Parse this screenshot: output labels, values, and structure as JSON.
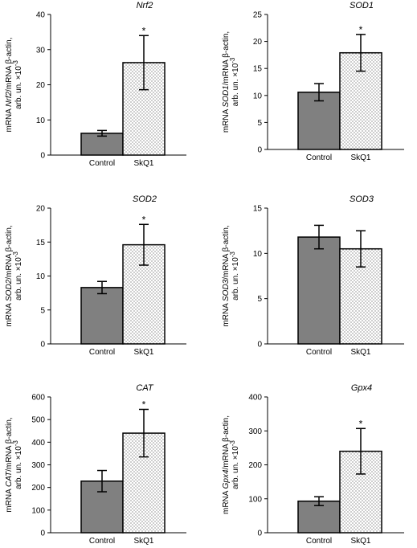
{
  "chart_data": [
    {
      "type": "bar",
      "title": "Nrf2",
      "ylabel_prefix": "mRNA ",
      "ylabel_gene": "Nrf2",
      "ylabel_rest": "/mRNA β-actin,",
      "ylabel_line2": "arb. un. ×10",
      "ylabel_exp": "-3",
      "categories": [
        "Control",
        "SkQ1"
      ],
      "values": [
        6.2,
        26.3
      ],
      "errors": [
        0.8,
        7.7
      ],
      "significant": [
        false,
        true
      ],
      "sig_marker": "*",
      "ylim": [
        0,
        40
      ],
      "yticks": [
        0,
        10,
        20,
        30,
        40
      ]
    },
    {
      "type": "bar",
      "title": "SOD1",
      "ylabel_prefix": "mRNA ",
      "ylabel_gene": "SOD1",
      "ylabel_rest": "/mRNA β-actin,",
      "ylabel_line2": "arb. un. ×10",
      "ylabel_exp": "-3",
      "categories": [
        "Control",
        "SkQ1"
      ],
      "values": [
        10.6,
        17.9
      ],
      "errors": [
        1.6,
        3.4
      ],
      "significant": [
        false,
        true
      ],
      "sig_marker": "*",
      "ylim": [
        0,
        25
      ],
      "yticks": [
        0,
        5,
        10,
        15,
        20,
        25
      ]
    },
    {
      "type": "bar",
      "title": "SOD2",
      "ylabel_prefix": "mRNA ",
      "ylabel_gene": "SOD2",
      "ylabel_rest": "/mRNA β-actin,",
      "ylabel_line2": "arb. un. ×10",
      "ylabel_exp": "-3",
      "categories": [
        "Control",
        "SkQ1"
      ],
      "values": [
        8.3,
        14.6
      ],
      "errors": [
        0.9,
        3.0
      ],
      "significant": [
        false,
        true
      ],
      "sig_marker": "*",
      "ylim": [
        0,
        20
      ],
      "yticks": [
        0,
        5,
        10,
        15,
        20
      ]
    },
    {
      "type": "bar",
      "title": "SOD3",
      "ylabel_prefix": "mRNA ",
      "ylabel_gene": "SOD3",
      "ylabel_rest": "/mRNA β-actin,",
      "ylabel_line2": "arb. un. ×10",
      "ylabel_exp": "-3",
      "categories": [
        "Control",
        "SkQ1"
      ],
      "values": [
        11.8,
        10.5
      ],
      "errors": [
        1.3,
        2.0
      ],
      "significant": [
        false,
        false
      ],
      "sig_marker": "*",
      "ylim": [
        0,
        15
      ],
      "yticks": [
        0,
        5,
        10,
        15
      ]
    },
    {
      "type": "bar",
      "title": "CAT",
      "ylabel_prefix": "mRNA ",
      "ylabel_gene": "CAT",
      "ylabel_rest": "/mRNA β-actin,",
      "ylabel_line2": "arb. un. ×10",
      "ylabel_exp": "-3",
      "categories": [
        "Control",
        "SkQ1"
      ],
      "values": [
        228,
        440
      ],
      "errors": [
        47,
        105
      ],
      "significant": [
        false,
        true
      ],
      "sig_marker": "*",
      "ylim": [
        0,
        600
      ],
      "yticks": [
        0,
        100,
        200,
        300,
        400,
        500,
        600
      ]
    },
    {
      "type": "bar",
      "title": "Gpx4",
      "ylabel_prefix": "mRNA ",
      "ylabel_gene": "Gpx4",
      "ylabel_rest": "/mRNA β-actin,",
      "ylabel_line2": "arb. un. ×10",
      "ylabel_exp": "-3",
      "categories": [
        "Control",
        "SkQ1"
      ],
      "values": [
        93,
        240
      ],
      "errors": [
        13,
        67
      ],
      "significant": [
        false,
        true
      ],
      "sig_marker": "*",
      "ylim": [
        0,
        400
      ],
      "yticks": [
        0,
        100,
        200,
        300,
        400
      ]
    }
  ],
  "colors": {
    "control_fill": "#808080",
    "skq1_fill": "#ffffff",
    "skq1_dots": "#555555",
    "axis": "#000000"
  }
}
